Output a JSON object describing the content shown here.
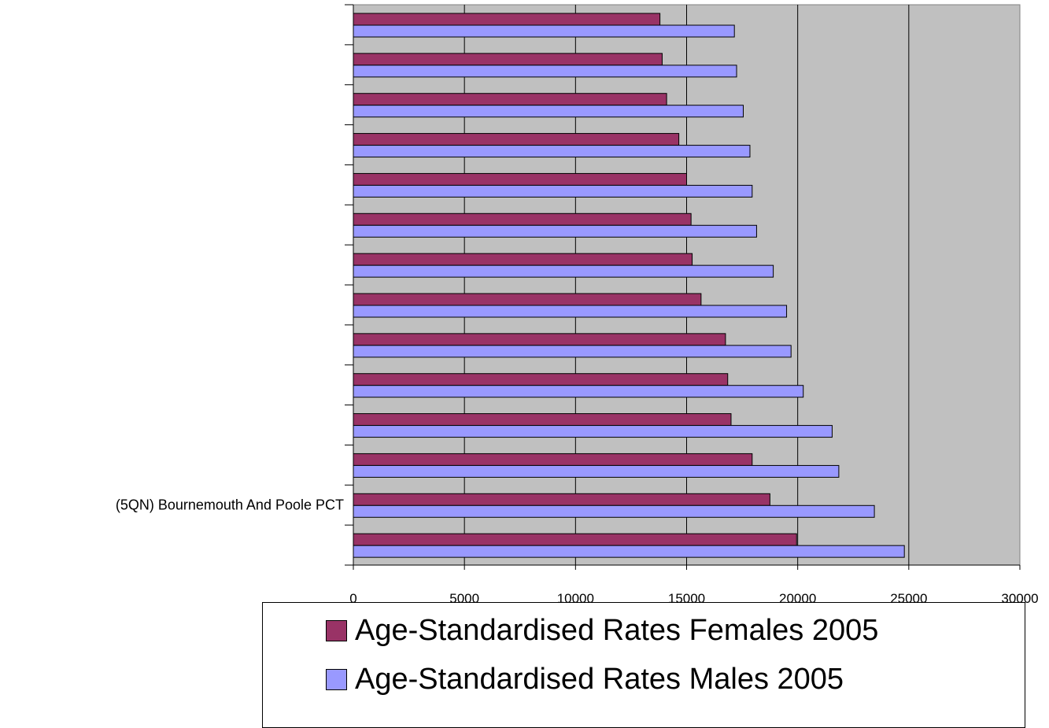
{
  "chart_data": {
    "type": "bar",
    "orientation": "horizontal",
    "categories": [
      "",
      "",
      "",
      "",
      "",
      "",
      "",
      "",
      "",
      "",
      "",
      "",
      "(5QN) Bournemouth And Poole PCT",
      ""
    ],
    "series": [
      {
        "name": "Age-Standardised Rates  Females 2005",
        "color": "#993366",
        "values": [
          13800,
          13900,
          14100,
          14650,
          15000,
          15200,
          15250,
          15650,
          16750,
          16850,
          17000,
          17950,
          18750,
          19950
        ]
      },
      {
        "name": "Age-Standardised Rates  Males 2005",
        "color": "#9999FF",
        "values": [
          17150,
          17250,
          17550,
          17850,
          17950,
          18150,
          18900,
          19500,
          19700,
          20250,
          21550,
          21850,
          23450,
          24800
        ]
      }
    ],
    "xlim": [
      0,
      30000
    ],
    "xticks": [
      0,
      5000,
      10000,
      15000,
      20000,
      25000,
      30000
    ],
    "plot_background": "#C0C0C0",
    "grid": true,
    "legend_position": "bottom"
  }
}
